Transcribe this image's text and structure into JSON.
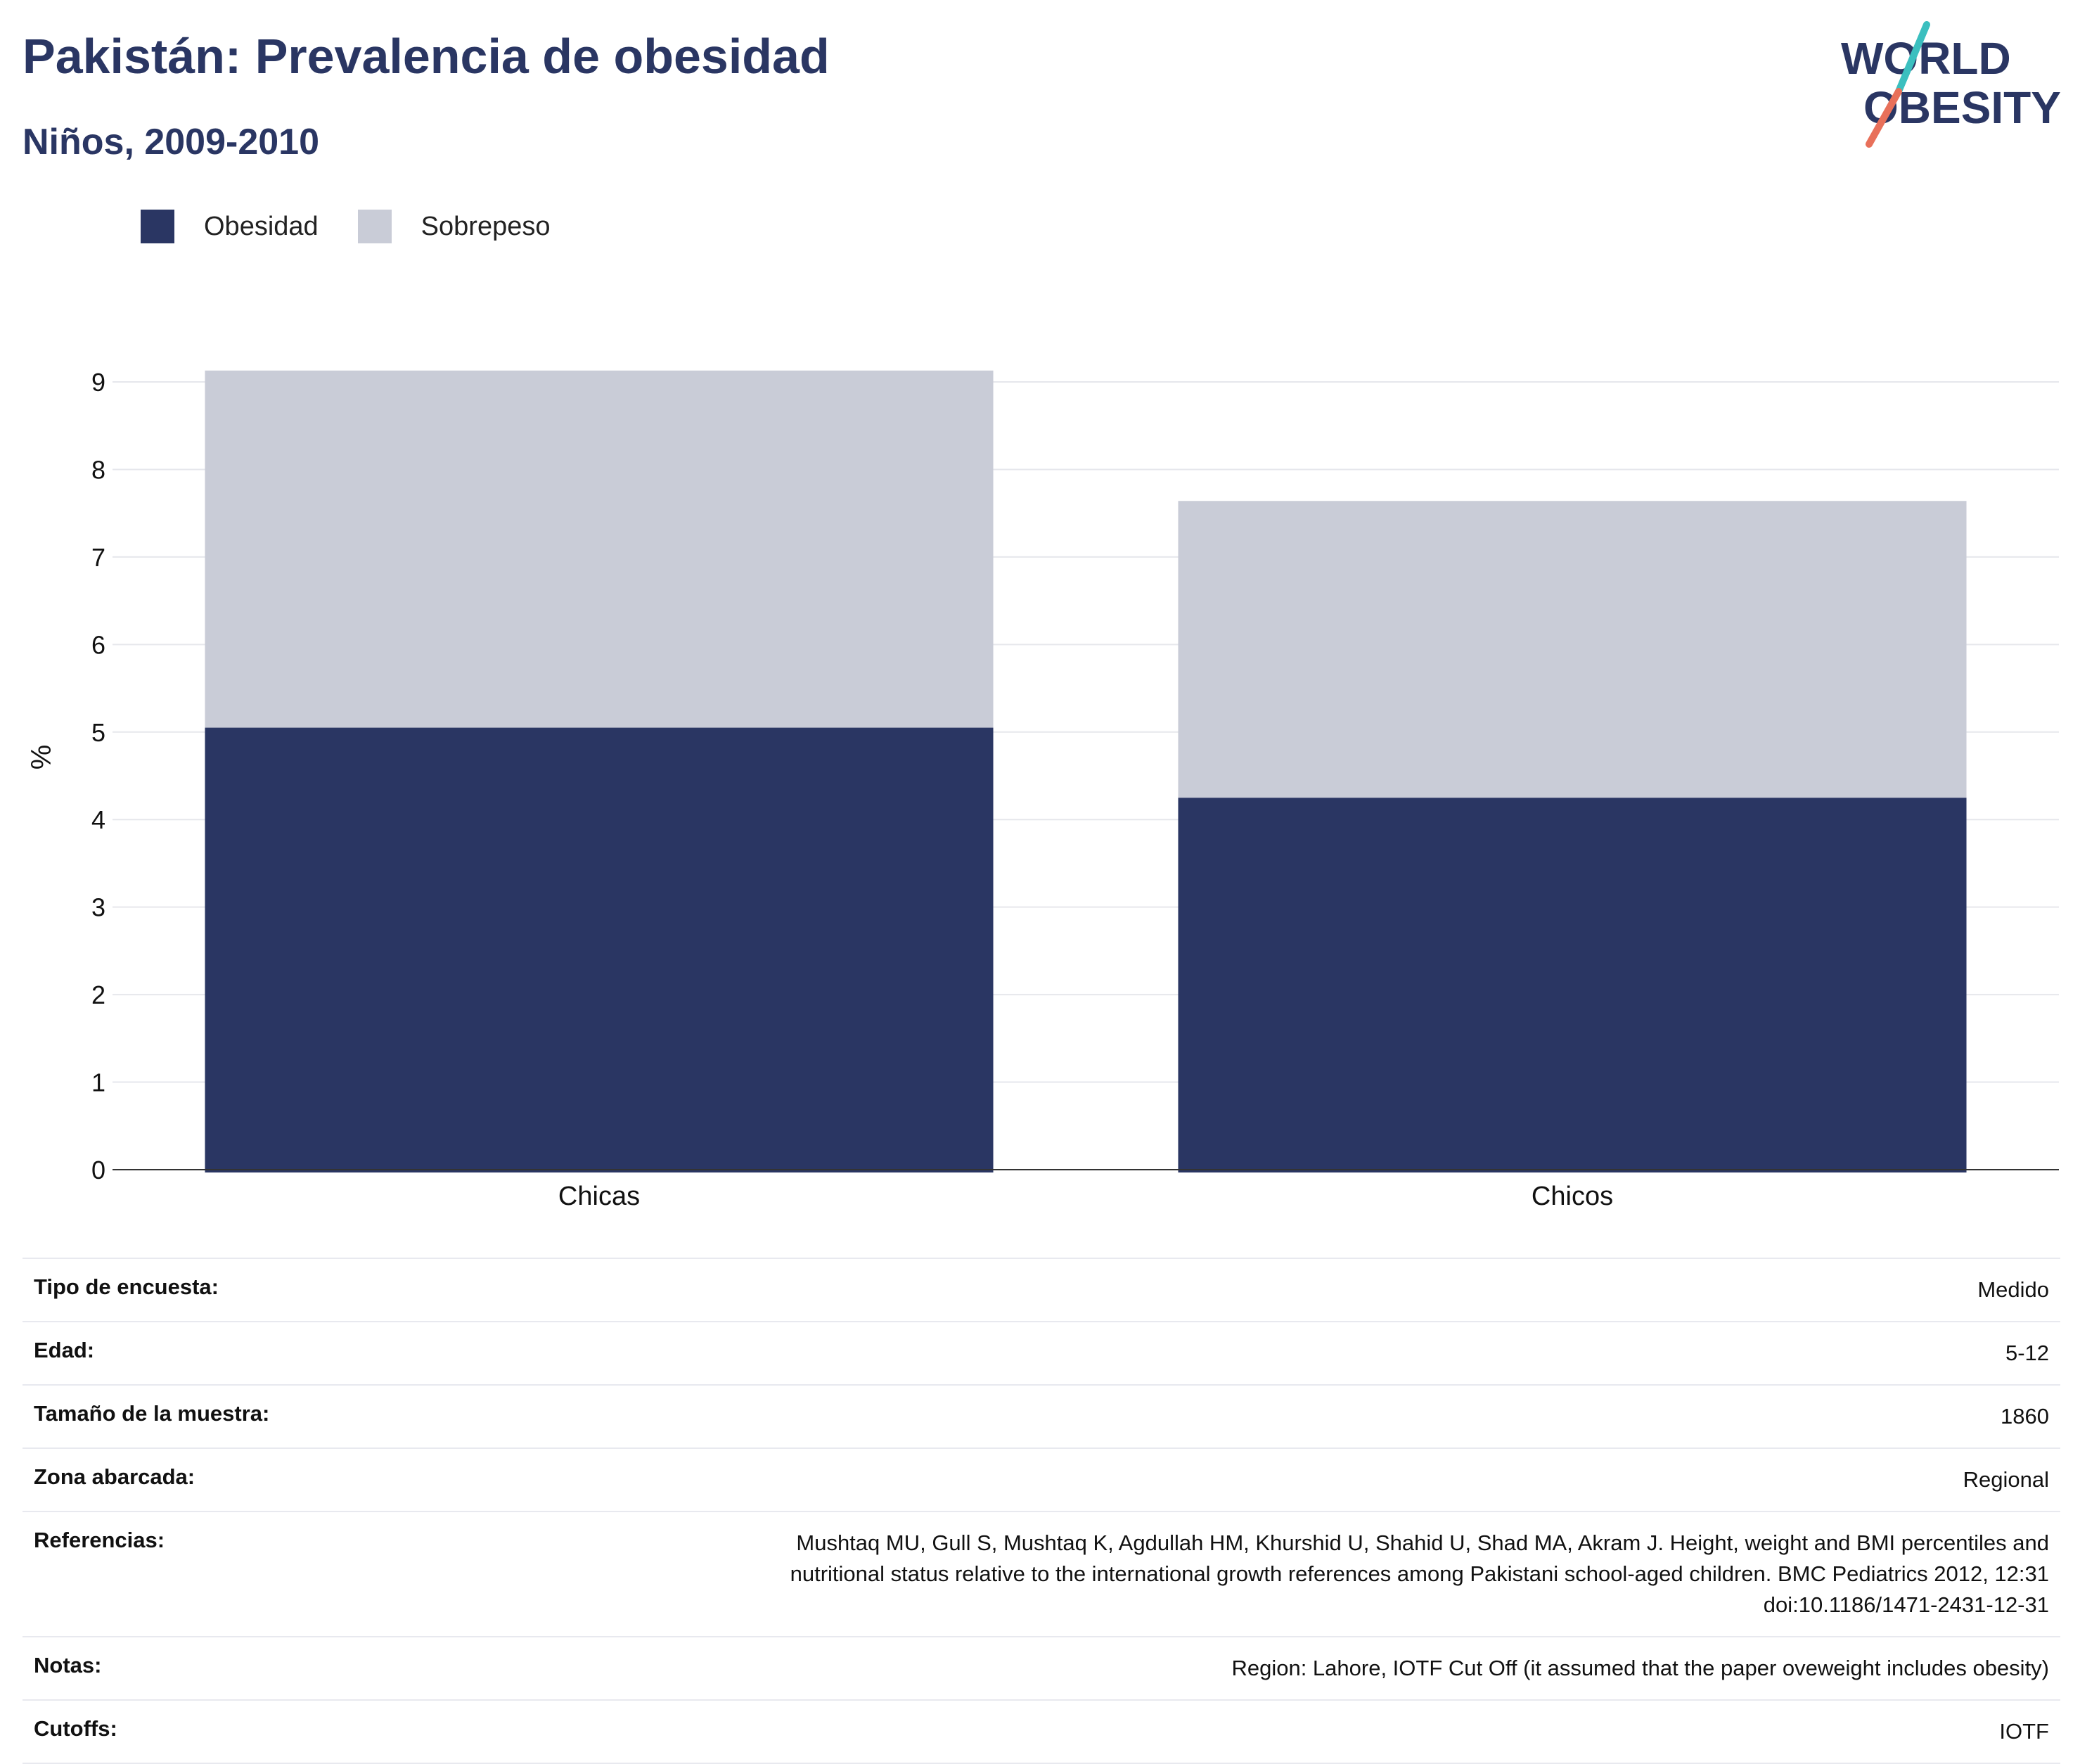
{
  "header": {
    "title": "Pakistán: Prevalencia de obesidad",
    "subtitle": "Niños, 2009-2010"
  },
  "logo": {
    "line1": "WORLD",
    "line2": "OBESITY",
    "colors": {
      "text": "#2a3663",
      "slash_top": "#3bbfbf",
      "slash_bottom": "#e8705a"
    }
  },
  "legend": [
    {
      "label": "Obesidad",
      "color": "#2a3663"
    },
    {
      "label": "Sobrepeso",
      "color": "#c9ccd7"
    }
  ],
  "chart_data": {
    "type": "bar",
    "stacked": true,
    "categories": [
      "Chicas",
      "Chicos"
    ],
    "series": [
      {
        "name": "Obesidad",
        "values": [
          5.05,
          4.25
        ],
        "color": "#2a3663"
      },
      {
        "name": "Sobrepeso",
        "values": [
          4.08,
          3.39
        ],
        "color": "#c9ccd7"
      }
    ],
    "ylabel": "%",
    "xlabel": "",
    "ylim": [
      0,
      9
    ],
    "yticks": [
      0,
      1,
      2,
      3,
      4,
      5,
      6,
      7,
      8,
      9
    ],
    "grid": true,
    "legend_position": "top-left"
  },
  "meta_table": [
    {
      "label": "Tipo de encuesta:",
      "value": "Medido"
    },
    {
      "label": "Edad:",
      "value": "5-12"
    },
    {
      "label": "Tamaño de la muestra:",
      "value": "1860"
    },
    {
      "label": "Zona abarcada:",
      "value": "Regional"
    },
    {
      "label": "Referencias:",
      "value_lines": [
        "Mushtaq MU, Gull S, Mushtaq K, Agdullah HM, Khurshid U, Shahid U, Shad MA, Akram J. Height, weight and BMI percentiles and",
        "nutritional status relative to the international growth references among Pakistani school-aged children. BMC Pediatrics 2012, 12:31",
        "doi:10.1186/1471-2431-12-31"
      ]
    },
    {
      "label": "Notas:",
      "value": "Region: Lahore, IOTF Cut Off (it assumed that the paper oveweight includes obesity)"
    },
    {
      "label": "Cutoffs:",
      "value": "IOTF"
    }
  ]
}
